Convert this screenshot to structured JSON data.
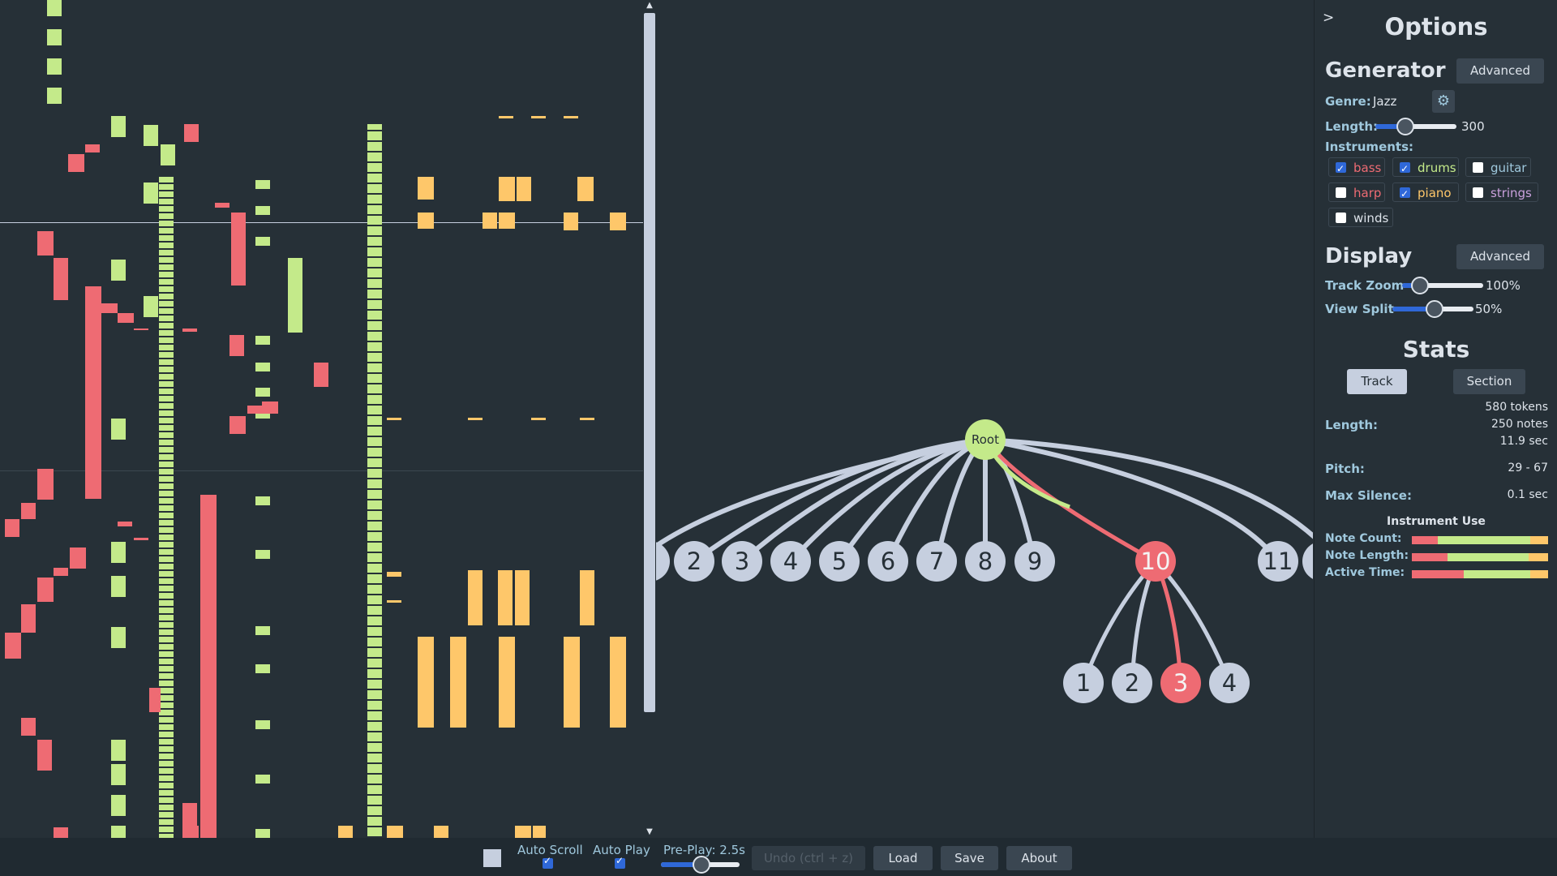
{
  "colors": {
    "background": "#263037",
    "bass": "#ee6b73",
    "drums": "#c4ea8a",
    "piano": "#fec76a",
    "node": "#c6cfdf",
    "selected": "#ee6b73",
    "root": "#c4ea8a"
  },
  "tree": {
    "root_label": "Root",
    "children": [
      "2",
      "3",
      "4",
      "5",
      "6",
      "7",
      "8",
      "9",
      "10",
      "11"
    ],
    "grandchildren": [
      "1",
      "2",
      "3",
      "4"
    ],
    "selected_child": "10",
    "selected_grandchild": "3"
  },
  "options": {
    "toggle": ">",
    "title": "Options",
    "generator": {
      "heading": "Generator",
      "advanced": "Advanced",
      "genre_label": "Genre:",
      "genre_value": "Jazz",
      "genre_icon": "gear-icon",
      "length_label": "Length:",
      "length_value": "300",
      "length_fraction": 0.35,
      "instruments_label": "Instruments:",
      "instruments": [
        {
          "name": "bass",
          "checked": true,
          "color": "#ee6b73"
        },
        {
          "name": "drums",
          "checked": true,
          "color": "#c4ea8a"
        },
        {
          "name": "guitar",
          "checked": false,
          "color": "#9fc8dd"
        },
        {
          "name": "harp",
          "checked": false,
          "color": "#ee6b73"
        },
        {
          "name": "piano",
          "checked": true,
          "color": "#fec76a"
        },
        {
          "name": "strings",
          "checked": false,
          "color": "#c9a0dc"
        },
        {
          "name": "winds",
          "checked": false,
          "color": "#dde3ea"
        }
      ]
    },
    "display": {
      "heading": "Display",
      "advanced": "Advanced",
      "zoom_label": "Track Zoom",
      "zoom_value": "100%",
      "split_label": "View Split",
      "split_value": "50%",
      "split_fraction": 0.5
    },
    "stats": {
      "heading": "Stats",
      "tab_track": "Track",
      "tab_section": "Section",
      "length_label": "Length:",
      "tokens": "580 tokens",
      "notes": "250 notes",
      "seconds": "11.9 sec",
      "pitch_label": "Pitch:",
      "pitch_value": "29 - 67",
      "silence_label": "Max Silence:",
      "silence_value": "0.1 sec",
      "instrument_use": "Instrument Use",
      "note_count_label": "Note Count:",
      "note_length_label": "Note Length:",
      "active_time_label": "Active Time:",
      "note_count_shares": [
        0.19,
        0.68,
        0.13
      ],
      "note_length_shares": [
        0.26,
        0.6,
        0.14
      ],
      "active_time_shares": [
        0.38,
        0.49,
        0.13
      ]
    }
  },
  "bottom": {
    "auto_scroll": "Auto Scroll",
    "auto_play": "Auto Play",
    "preplay": "Pre-Play: 2.5s",
    "preplay_fraction": 0.5,
    "undo": "Undo (ctrl + z)",
    "load": "Load",
    "save": "Save",
    "about": "About"
  }
}
